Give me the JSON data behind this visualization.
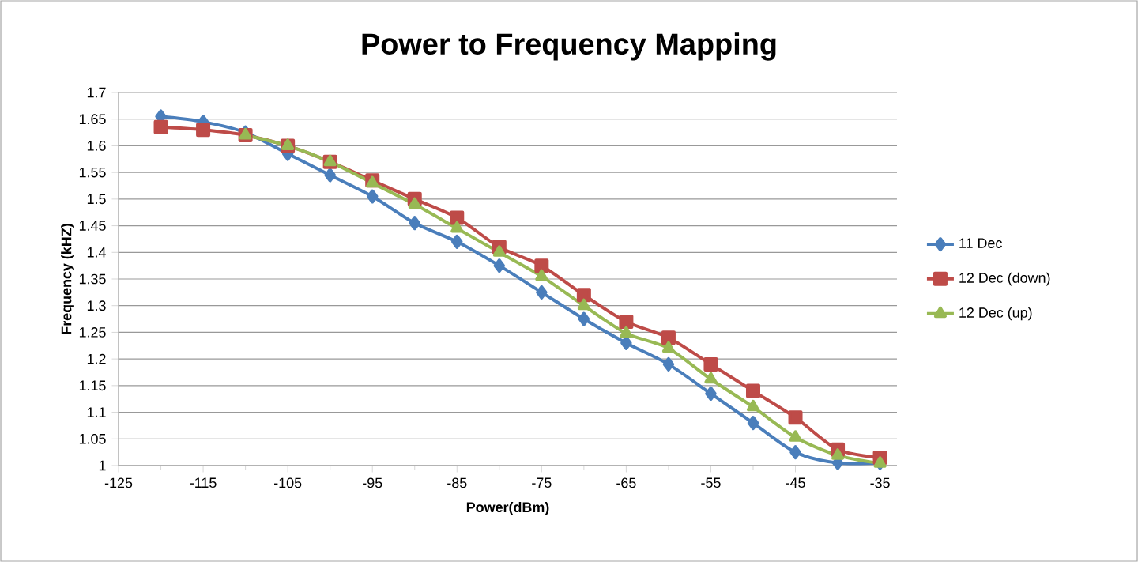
{
  "chart_data": {
    "type": "line",
    "title": "Power to Frequency Mapping",
    "xlabel": "Power(dBm)",
    "ylabel": "Frequency (kHZ)",
    "x": [
      -120,
      -115,
      -110,
      -105,
      -100,
      -95,
      -90,
      -85,
      -80,
      -75,
      -70,
      -65,
      -60,
      -55,
      -50,
      -45,
      -40,
      -35
    ],
    "series": [
      {
        "name": "11 Dec",
        "color": "#4a7ebb",
        "marker": "diamond",
        "values": [
          1.655,
          1.645,
          1.625,
          1.585,
          1.545,
          1.505,
          1.455,
          1.42,
          1.375,
          1.325,
          1.275,
          1.23,
          1.19,
          1.135,
          1.08,
          1.025,
          1.005,
          1.005
        ]
      },
      {
        "name": "12 Dec (down)",
        "color": "#be4b48",
        "marker": "square",
        "values": [
          1.635,
          1.63,
          1.62,
          1.6,
          1.57,
          1.535,
          1.5,
          1.465,
          1.41,
          1.375,
          1.32,
          1.27,
          1.24,
          1.19,
          1.14,
          1.09,
          1.03,
          1.015
        ]
      },
      {
        "name": "12 Dec (up)",
        "color": "#98b954",
        "marker": "triangle",
        "values": [
          null,
          null,
          1.62,
          1.6,
          1.57,
          1.53,
          1.49,
          1.445,
          1.4,
          1.355,
          1.3,
          1.248,
          1.22,
          1.162,
          1.11,
          1.053,
          1.019,
          1.004
        ]
      }
    ],
    "xlim": [
      -125,
      -33
    ],
    "xticks": [
      -125,
      -115,
      -105,
      -95,
      -85,
      -75,
      -65,
      -55,
      -45,
      -35
    ],
    "ylim": [
      1,
      1.7
    ],
    "yticks": [
      1,
      1.05,
      1.1,
      1.15,
      1.2,
      1.25,
      1.3,
      1.35,
      1.4,
      1.45,
      1.5,
      1.55,
      1.6,
      1.65,
      1.7
    ],
    "grid": "y",
    "legend": "right",
    "line_style": "solid"
  }
}
